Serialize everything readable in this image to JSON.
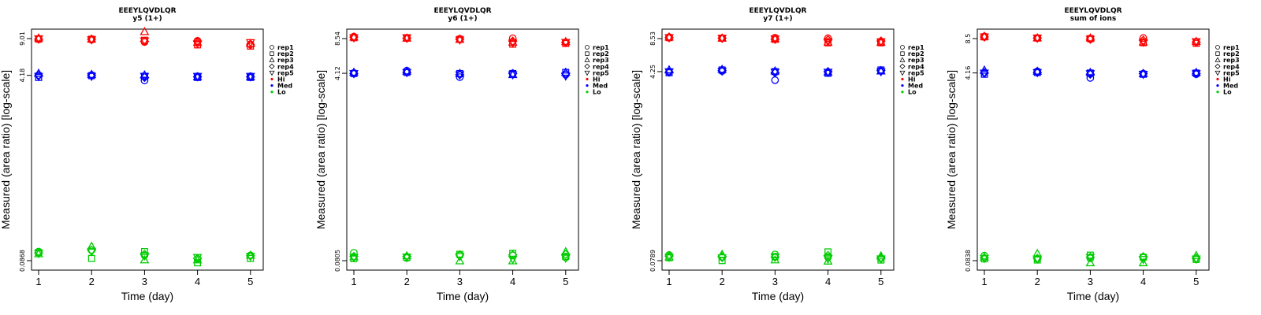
{
  "figure": {
    "xlabel": "Time (day)",
    "ylabel": "Measured (area ratio) [log-scale]",
    "legend": [
      {
        "label": "rep1",
        "symbol": "circle"
      },
      {
        "label": "rep2",
        "symbol": "square"
      },
      {
        "label": "rep3",
        "symbol": "triangle-up"
      },
      {
        "label": "rep4",
        "symbol": "diamond"
      },
      {
        "label": "rep5",
        "symbol": "triangle-down"
      },
      {
        "label": "Hi",
        "symbol": "dot",
        "color": "#ff0000"
      },
      {
        "label": "Med",
        "symbol": "dot",
        "color": "#0000ff"
      },
      {
        "label": "Lo",
        "symbol": "dot",
        "color": "#00cc00"
      }
    ],
    "colors": {
      "Hi": "#ff0000",
      "Med": "#0000ff",
      "Lo": "#00cc00"
    },
    "legend_position": "right",
    "grid": false
  },
  "chart_data": [
    {
      "type": "scatter",
      "title": "EEEYLQVDLQR",
      "subtitle": "y5 (1+)",
      "xlabel": "Time (day)",
      "ylabel": "Measured (area ratio) [log-scale]",
      "x": [
        1,
        2,
        3,
        4,
        5
      ],
      "x_ticks": [
        "1",
        "2",
        "3",
        "4",
        "5"
      ],
      "y_scale": "log",
      "y_ticks": [
        "0.0868",
        "4.18",
        "9.01"
      ],
      "y_tick_values": [
        0.0868,
        4.18,
        9.01
      ],
      "series": [
        {
          "name": "Hi",
          "color": "#ff0000",
          "reps": [
            [
              9.0,
              8.8,
              8.4,
              8.6,
              8.0
            ],
            [
              8.9,
              8.9,
              8.7,
              7.9,
              7.7
            ],
            [
              9.1,
              8.9,
              10.4,
              8.3,
              8.1
            ],
            [
              8.9,
              8.9,
              8.5,
              8.5,
              7.9
            ],
            [
              9.0,
              8.8,
              8.6,
              8.1,
              8.3
            ]
          ]
        },
        {
          "name": "Med",
          "color": "#0000ff",
          "reps": [
            [
              4.2,
              4.2,
              3.75,
              4.1,
              4.1
            ],
            [
              4.0,
              4.15,
              4.1,
              4.0,
              4.0
            ],
            [
              4.35,
              4.25,
              4.2,
              4.05,
              4.05
            ],
            [
              4.15,
              4.2,
              4.0,
              4.05,
              4.05
            ],
            [
              4.1,
              4.1,
              4.1,
              4.1,
              4.1
            ]
          ]
        },
        {
          "name": "Lo",
          "color": "#00cc00",
          "reps": [
            [
              0.105,
              0.108,
              0.097,
              0.09,
              0.097
            ],
            [
              0.103,
              0.091,
              0.105,
              0.083,
              0.091
            ],
            [
              0.1,
              0.117,
              0.088,
              0.088,
              0.097
            ],
            [
              0.102,
              0.108,
              0.099,
              0.091,
              0.096
            ],
            [
              0.101,
              0.105,
              0.096,
              0.093,
              0.095
            ]
          ]
        }
      ]
    },
    {
      "type": "scatter",
      "title": "EEEYLQVDLQR",
      "subtitle": "y6 (1+)",
      "xlabel": "Time (day)",
      "ylabel": "Measured (area ratio) [log-scale]",
      "x": [
        1,
        2,
        3,
        4,
        5
      ],
      "x_ticks": [
        "1",
        "2",
        "3",
        "4",
        "5"
      ],
      "y_scale": "log",
      "y_ticks": [
        "0.0805",
        "4.12",
        "8.54"
      ],
      "y_tick_values": [
        0.0805,
        4.12,
        8.54
      ],
      "series": [
        {
          "name": "Hi",
          "color": "#ff0000",
          "reps": [
            [
              8.9,
              8.6,
              8.5,
              8.6,
              7.9
            ],
            [
              8.7,
              8.7,
              8.4,
              7.6,
              7.7
            ],
            [
              8.8,
              8.6,
              8.4,
              7.9,
              8.0
            ],
            [
              8.8,
              8.6,
              8.4,
              8.1,
              7.9
            ],
            [
              8.7,
              8.7,
              8.3,
              7.8,
              7.9
            ]
          ]
        },
        {
          "name": "Med",
          "color": "#0000ff",
          "reps": [
            [
              4.15,
              4.35,
              3.8,
              4.1,
              4.0
            ],
            [
              4.1,
              4.2,
              4.1,
              4.1,
              4.2
            ],
            [
              4.2,
              4.3,
              4.1,
              4.0,
              4.2
            ],
            [
              4.1,
              4.2,
              4.0,
              4.1,
              4.1
            ],
            [
              4.1,
              4.2,
              4.0,
              4.0,
              3.9
            ]
          ]
        },
        {
          "name": "Lo",
          "color": "#00cc00",
          "reps": [
            [
              0.095,
              0.085,
              0.09,
              0.09,
              0.086
            ],
            [
              0.084,
              0.086,
              0.092,
              0.094,
              0.088
            ],
            [
              0.087,
              0.089,
              0.08,
              0.08,
              0.097
            ],
            [
              0.088,
              0.088,
              0.091,
              0.091,
              0.092
            ],
            [
              0.086,
              0.087,
              0.088,
              0.083,
              0.085
            ]
          ]
        }
      ]
    },
    {
      "type": "scatter",
      "title": "EEEYLQVDLQR",
      "subtitle": "y7 (1+)",
      "xlabel": "Time (day)",
      "ylabel": "Measured (area ratio) [log-scale]",
      "x": [
        1,
        2,
        3,
        4,
        5
      ],
      "x_ticks": [
        "1",
        "2",
        "3",
        "4",
        "5"
      ],
      "y_scale": "log",
      "y_ticks": [
        "0.0789",
        "4.25",
        "8.53"
      ],
      "y_tick_values": [
        0.0789,
        4.25,
        8.53
      ],
      "series": [
        {
          "name": "Hi",
          "color": "#ff0000",
          "reps": [
            [
              8.8,
              8.6,
              8.7,
              8.6,
              7.9
            ],
            [
              8.7,
              8.6,
              8.4,
              7.8,
              7.8
            ],
            [
              8.8,
              8.6,
              8.5,
              7.9,
              7.9
            ],
            [
              8.7,
              8.6,
              8.4,
              8.3,
              8.1
            ],
            [
              8.7,
              8.6,
              8.5,
              8.0,
              8.0
            ]
          ]
        },
        {
          "name": "Med",
          "color": "#0000ff",
          "reps": [
            [
              4.25,
              4.3,
              3.55,
              4.2,
              4.3
            ],
            [
              4.15,
              4.4,
              4.25,
              4.1,
              4.4
            ],
            [
              4.4,
              4.45,
              4.3,
              4.2,
              4.3
            ],
            [
              4.2,
              4.35,
              4.15,
              4.25,
              4.35
            ],
            [
              4.25,
              4.3,
              4.2,
              4.2,
              4.25
            ]
          ]
        },
        {
          "name": "Lo",
          "color": "#00cc00",
          "reps": [
            [
              0.089,
              0.085,
              0.09,
              0.085,
              0.083
            ],
            [
              0.084,
              0.079,
              0.086,
              0.095,
              0.08
            ],
            [
              0.085,
              0.09,
              0.08,
              0.078,
              0.087
            ],
            [
              0.087,
              0.086,
              0.085,
              0.088,
              0.084
            ],
            [
              0.085,
              0.084,
              0.085,
              0.082,
              0.082
            ]
          ]
        }
      ]
    },
    {
      "type": "scatter",
      "title": "EEEYLQVDLQR",
      "subtitle": "sum of ions",
      "xlabel": "Time (day)",
      "ylabel": "Measured (area ratio) [log-scale]",
      "x": [
        1,
        2,
        3,
        4,
        5
      ],
      "x_ticks": [
        "1",
        "2",
        "3",
        "4",
        "5"
      ],
      "y_scale": "log",
      "y_ticks": [
        "0.0838",
        "4.16",
        "8.5"
      ],
      "y_tick_values": [
        0.0838,
        4.16,
        8.5
      ],
      "series": [
        {
          "name": "Hi",
          "color": "#ff0000",
          "reps": [
            [
              8.9,
              8.6,
              8.4,
              8.6,
              7.9
            ],
            [
              8.8,
              8.6,
              8.5,
              7.8,
              7.7
            ],
            [
              8.9,
              8.6,
              8.6,
              7.9,
              8.0
            ],
            [
              8.8,
              8.6,
              8.4,
              8.2,
              7.9
            ],
            [
              8.8,
              8.6,
              8.4,
              7.9,
              8.0
            ]
          ]
        },
        {
          "name": "Med",
          "color": "#0000ff",
          "reps": [
            [
              4.2,
              4.3,
              3.75,
              4.1,
              4.05
            ],
            [
              4.05,
              4.2,
              4.15,
              4.05,
              4.15
            ],
            [
              4.4,
              4.3,
              4.2,
              4.1,
              4.2
            ],
            [
              4.15,
              4.2,
              4.05,
              4.1,
              4.1
            ],
            [
              4.15,
              4.2,
              4.1,
              4.05,
              4.1
            ]
          ]
        },
        {
          "name": "Lo",
          "color": "#00cc00",
          "reps": [
            [
              0.093,
              0.087,
              0.088,
              0.089,
              0.086
            ],
            [
              0.087,
              0.085,
              0.094,
              0.09,
              0.086
            ],
            [
              0.09,
              0.097,
              0.08,
              0.08,
              0.093
            ],
            [
              0.089,
              0.088,
              0.09,
              0.091,
              0.088
            ],
            [
              0.088,
              0.087,
              0.09,
              0.086,
              0.087
            ]
          ]
        }
      ]
    }
  ]
}
